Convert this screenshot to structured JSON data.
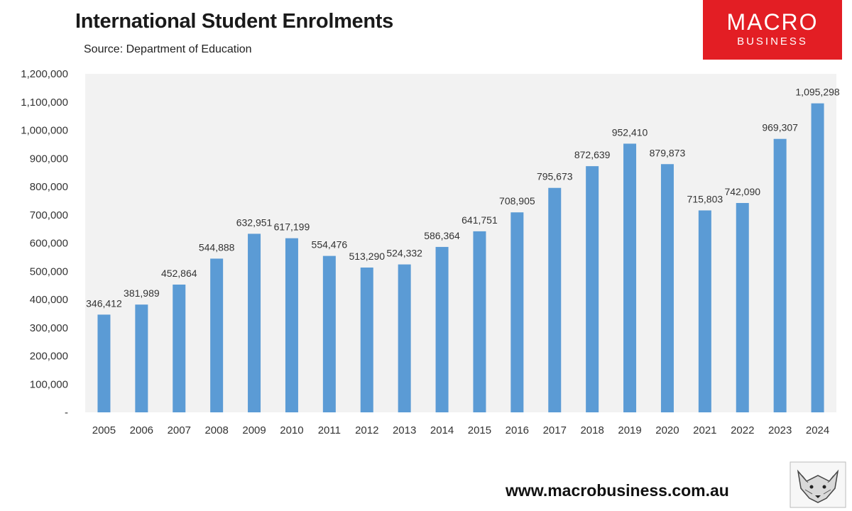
{
  "header": {
    "title": "International Student Enrolments",
    "subtitle": "Source: Department of Education"
  },
  "logo": {
    "line1": "MACRO",
    "line2": "BUSINESS",
    "color": "#e31e24"
  },
  "footer": {
    "url": "www.macrobusiness.com.au",
    "icon": "fox-logo-icon"
  },
  "chart_data": {
    "type": "bar",
    "title": "International Student Enrolments",
    "subtitle": "Source: Department of Education",
    "categories": [
      "2005",
      "2006",
      "2007",
      "2008",
      "2009",
      "2010",
      "2011",
      "2012",
      "2013",
      "2014",
      "2015",
      "2016",
      "2017",
      "2018",
      "2019",
      "2020",
      "2021",
      "2022",
      "2023",
      "2024"
    ],
    "values": [
      346412,
      381989,
      452864,
      544888,
      632951,
      617199,
      554476,
      513290,
      524332,
      586364,
      641751,
      708905,
      795673,
      872639,
      952410,
      879873,
      715803,
      742090,
      969307,
      1095298
    ],
    "value_labels": [
      "346,412",
      "381,989",
      "452,864",
      "544,888",
      "632,951",
      "617,199",
      "554,476",
      "513,290",
      "524,332",
      "586,364",
      "641,751",
      "708,905",
      "795,673",
      "872,639",
      "952,410",
      "879,873",
      "715,803",
      "742,090",
      "969,307",
      "1,095,298"
    ],
    "ylim": [
      0,
      1200000
    ],
    "yticks": [
      0,
      100000,
      200000,
      300000,
      400000,
      500000,
      600000,
      700000,
      800000,
      900000,
      1000000,
      1100000,
      1200000
    ],
    "ytick_labels": [
      "-",
      "100,000",
      "200,000",
      "300,000",
      "400,000",
      "500,000",
      "600,000",
      "700,000",
      "800,000",
      "900,000",
      "1,000,000",
      "1,100,000",
      "1,200,000"
    ],
    "xlabel": "",
    "ylabel": "",
    "grid": false,
    "legend": "none",
    "bar_color": "#5b9bd5",
    "plot_background": "#f2f2f2"
  }
}
